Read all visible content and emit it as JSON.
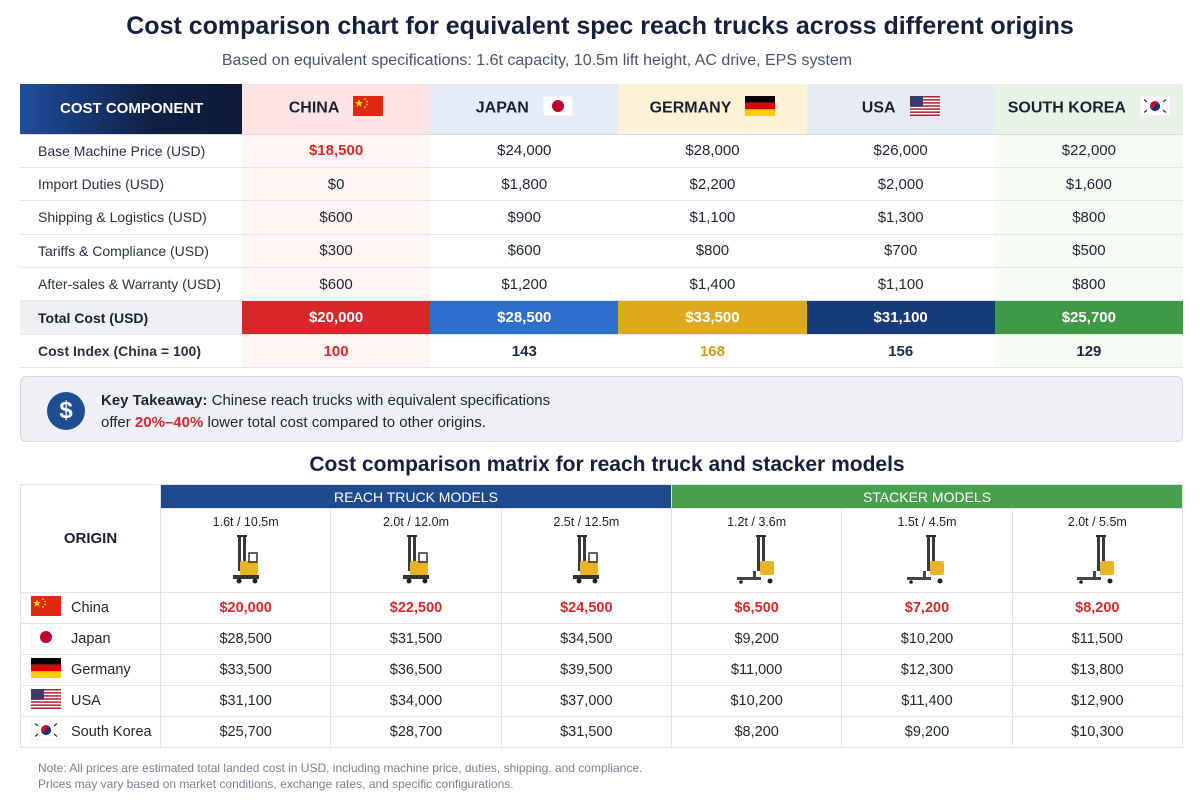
{
  "title": "Cost comparison chart for equivalent spec reach trucks across different origins",
  "subtitle": "Based on equivalent specifications: 1.6t capacity, 10.5m lift height, AC drive, EPS system",
  "countries": [
    {
      "name": "CHINA",
      "short": "China",
      "flag": "china-flag-icon",
      "header_bg": "#fde4e4",
      "col_bg": "#fff5f5",
      "total_bg": "#d8262b",
      "index_color": "#d42a2a"
    },
    {
      "name": "JAPAN",
      "short": "Japan",
      "flag": "japan-flag-icon",
      "header_bg": "#e4ecf8",
      "col_bg": "#ffffff",
      "total_bg": "#2f6fcc",
      "index_color": "#1b2a4a"
    },
    {
      "name": "GERMANY",
      "short": "Germany",
      "flag": "germany-flag-icon",
      "header_bg": "#fdf2d6",
      "col_bg": "#ffffff",
      "total_bg": "#e0a81c",
      "index_color": "#d89a12"
    },
    {
      "name": "USA",
      "short": "USA",
      "flag": "usa-flag-icon",
      "header_bg": "#e6ebf4",
      "col_bg": "#ffffff",
      "total_bg": "#173a7a",
      "index_color": "#1b2a4a"
    },
    {
      "name": "SOUTH KOREA",
      "short": "South Korea",
      "flag": "south-korea-flag-icon",
      "header_bg": "#e7f3e4",
      "col_bg": "#f6fbf4",
      "total_bg": "#3f9a45",
      "index_color": "#1b2a4a"
    }
  ],
  "table1": {
    "header_label": "COST COMPONENT",
    "rows": [
      {
        "label": "Base Machine Price (USD)",
        "values": [
          "$18,500",
          "$24,000",
          "$28,000",
          "$26,000",
          "$22,000"
        ]
      },
      {
        "label": "Import Duties (USD)",
        "values": [
          "$0",
          "$1,800",
          "$2,200",
          "$2,000",
          "$1,600"
        ]
      },
      {
        "label": "Shipping & Logistics (USD)",
        "values": [
          "$600",
          "$900",
          "$1,100",
          "$1,300",
          "$800"
        ]
      },
      {
        "label": "Tariffs & Compliance (USD)",
        "values": [
          "$300",
          "$600",
          "$800",
          "$700",
          "$500"
        ]
      },
      {
        "label": "After-sales & Warranty (USD)",
        "values": [
          "$600",
          "$1,200",
          "$1,400",
          "$1,100",
          "$800"
        ]
      }
    ],
    "total": {
      "label": "Total Cost (USD)",
      "values": [
        "$20,000",
        "$28,500",
        "$33,500",
        "$31,100",
        "$25,700"
      ]
    },
    "index": {
      "label": "Cost Index (China = 100)",
      "values": [
        "100",
        "143",
        "168",
        "156",
        "129"
      ]
    }
  },
  "takeaway": {
    "lead": "Key Takeaway:",
    "line1": " Chinese reach trucks with equivalent specifications",
    "line2_pre": "offer ",
    "highlight": "20%–40%",
    "line2_post": " lower total cost compared to other origins.",
    "icon": "dollar-icon"
  },
  "matrix": {
    "title": "Cost comparison matrix for reach truck and stacker models",
    "origin_label": "ORIGIN",
    "groups": [
      {
        "label": "REACH TRUCK MODELS",
        "color": "#1e4a8e"
      },
      {
        "label": "STACKER MODELS",
        "color": "#46a04c"
      }
    ],
    "models": [
      {
        "label": "1.6t / 10.5m",
        "type": "reach-truck-icon"
      },
      {
        "label": "2.0t / 12.0m",
        "type": "reach-truck-icon"
      },
      {
        "label": "2.5t / 12.5m",
        "type": "reach-truck-icon"
      },
      {
        "label": "1.2t / 3.6m",
        "type": "stacker-icon"
      },
      {
        "label": "1.5t / 4.5m",
        "type": "stacker-icon"
      },
      {
        "label": "2.0t / 5.5m",
        "type": "stacker-icon"
      }
    ],
    "rows": [
      {
        "origin": "China",
        "values": [
          "$20,000",
          "$22,500",
          "$24,500",
          "$6,500",
          "$7,200",
          "$8,200"
        ]
      },
      {
        "origin": "Japan",
        "values": [
          "$28,500",
          "$31,500",
          "$34,500",
          "$9,200",
          "$10,200",
          "$11,500"
        ]
      },
      {
        "origin": "Germany",
        "values": [
          "$33,500",
          "$36,500",
          "$39,500",
          "$11,000",
          "$12,300",
          "$13,800"
        ]
      },
      {
        "origin": "USA",
        "values": [
          "$31,100",
          "$34,000",
          "$37,000",
          "$10,200",
          "$11,400",
          "$12,900"
        ]
      },
      {
        "origin": "South Korea",
        "values": [
          "$25,700",
          "$28,700",
          "$31,500",
          "$8,200",
          "$9,200",
          "$10,300"
        ]
      }
    ]
  },
  "note": {
    "line1": "Note: All prices are estimated total landed cost in USD, including machine price, duties, shipping, and compliance.",
    "line2": "Prices may vary based on market conditions, exchange rates, and specific configurations."
  },
  "chart_data": [
    {
      "type": "table",
      "title": "Cost comparison chart for equivalent spec reach trucks across different origins",
      "columns": [
        "CHINA",
        "JAPAN",
        "GERMANY",
        "USA",
        "SOUTH KOREA"
      ],
      "rows": [
        {
          "label": "Base Machine Price (USD)",
          "values": [
            18500,
            24000,
            28000,
            26000,
            22000
          ]
        },
        {
          "label": "Import Duties (USD)",
          "values": [
            0,
            1800,
            2200,
            2000,
            1600
          ]
        },
        {
          "label": "Shipping & Logistics (USD)",
          "values": [
            600,
            900,
            1100,
            1300,
            800
          ]
        },
        {
          "label": "Tariffs & Compliance (USD)",
          "values": [
            300,
            600,
            800,
            700,
            500
          ]
        },
        {
          "label": "After-sales & Warranty (USD)",
          "values": [
            600,
            1200,
            1400,
            1100,
            800
          ]
        },
        {
          "label": "Total Cost (USD)",
          "values": [
            20000,
            28500,
            33500,
            31100,
            25700
          ]
        },
        {
          "label": "Cost Index (China = 100)",
          "values": [
            100,
            143,
            168,
            156,
            129
          ]
        }
      ]
    },
    {
      "type": "table",
      "title": "Cost comparison matrix for reach truck and stacker models",
      "columns": [
        "1.6t / 10.5m",
        "2.0t / 12.0m",
        "2.5t / 12.5m",
        "1.2t / 3.6m",
        "1.5t / 4.5m",
        "2.0t / 5.5m"
      ],
      "rows": [
        {
          "label": "China",
          "values": [
            20000,
            22500,
            24500,
            6500,
            7200,
            8200
          ]
        },
        {
          "label": "Japan",
          "values": [
            28500,
            31500,
            34500,
            9200,
            10200,
            11500
          ]
        },
        {
          "label": "Germany",
          "values": [
            33500,
            36500,
            39500,
            11000,
            12300,
            13800
          ]
        },
        {
          "label": "USA",
          "values": [
            31100,
            34000,
            37000,
            10200,
            11400,
            12900
          ]
        },
        {
          "label": "South Korea",
          "values": [
            25700,
            28700,
            31500,
            8200,
            9200,
            10300
          ]
        }
      ]
    }
  ]
}
